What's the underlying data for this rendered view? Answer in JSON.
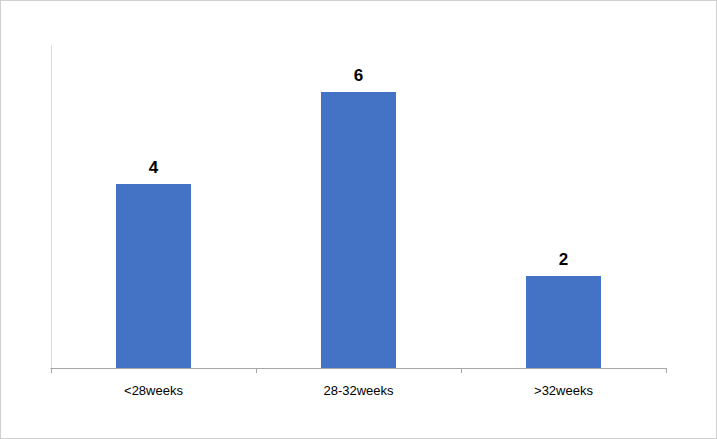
{
  "chart_data": {
    "type": "bar",
    "categories": [
      "<28weeks",
      "28-32weeks",
      ">32weeks"
    ],
    "values": [
      4,
      6,
      2
    ],
    "color": "#4472c4",
    "ylim": [
      0,
      7
    ],
    "grid": false,
    "data_labels": true,
    "tick_labels": "x"
  }
}
